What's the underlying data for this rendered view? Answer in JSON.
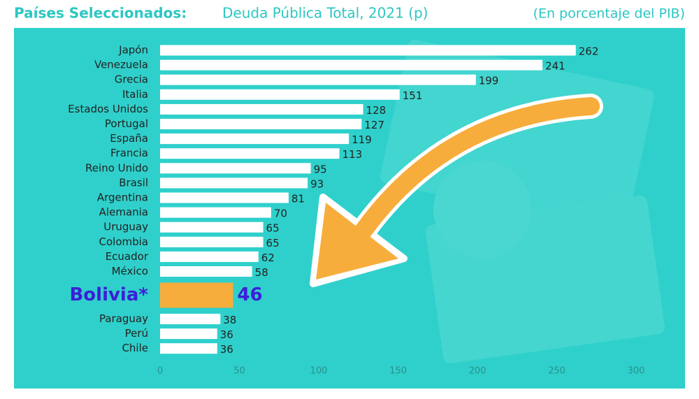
{
  "chart_data": {
    "type": "bar",
    "orientation": "horizontal",
    "title": "Países Seleccionados:",
    "subtitle": "Deuda Pública Total, 2021 (p)",
    "note": "(En porcentaje del PIB)",
    "categories": [
      "Japón",
      "Venezuela",
      "Grecia",
      "Italia",
      "Estados Unidos",
      "Portugal",
      "España",
      "Francia",
      "Reino Unido",
      "Brasil",
      "Argentina",
      "Alemania",
      "Uruguay",
      "Colombia",
      "Ecuador",
      "México",
      "Bolivia*",
      "Paraguay",
      "Perú",
      "Chile"
    ],
    "values": [
      262,
      241,
      199,
      151,
      128,
      127,
      119,
      113,
      95,
      93,
      81,
      70,
      65,
      65,
      62,
      58,
      46,
      38,
      36,
      36
    ],
    "color": "#ffffff",
    "highlight": {
      "index": 16,
      "color": "#f7ad3c",
      "label_color": "#3b1fd8"
    },
    "xlim": [
      0,
      300
    ],
    "xticks": [
      0,
      50,
      100,
      150,
      200,
      250,
      300
    ],
    "grid": false
  }
}
